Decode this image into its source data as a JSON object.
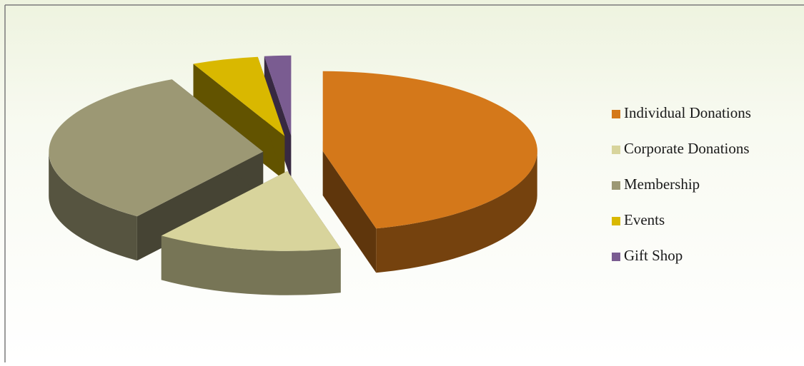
{
  "chart_data": {
    "type": "pie",
    "categories": [
      "Individual Donations",
      "Corporate Donations",
      "Membership",
      "Events",
      "Gift Shop"
    ],
    "values": [
      46,
      14,
      33,
      5,
      2
    ],
    "colors": [
      "#d4781a",
      "#d8d49c",
      "#9c9874",
      "#d9b800",
      "#7a5c91"
    ],
    "legend": "right"
  }
}
